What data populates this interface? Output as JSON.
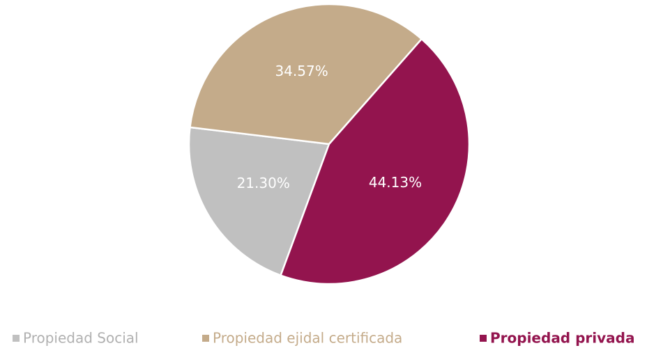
{
  "chart_data": {
    "type": "pie",
    "categories": [
      "Propiedad Social",
      "Propiedad ejidal certificada",
      "Propiedad privada"
    ],
    "values": [
      21.3,
      34.57,
      44.13
    ],
    "value_labels": [
      "21.30%",
      "34.57%",
      "44.13%"
    ],
    "colors": [
      "#c0c0c0",
      "#c4ab8a",
      "#93144e"
    ]
  }
}
